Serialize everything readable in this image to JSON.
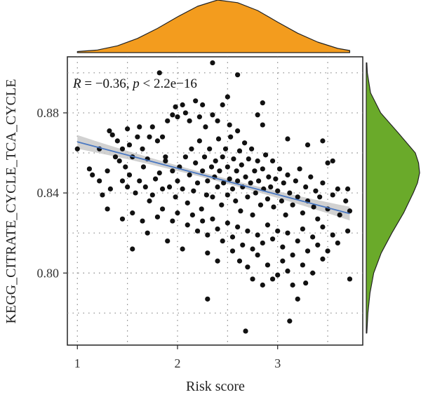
{
  "chart_data": {
    "type": "scatter",
    "title": "",
    "xlabel": "Risk score",
    "ylabel": "KEGG_CITRATE_CYCLE_TCA_CYCLE",
    "annotation": {
      "r_label": "R",
      "r_text": " = −0.36, ",
      "p_label": "p",
      "p_text": " < 2.2e−16"
    },
    "xlim": [
      0.9,
      3.85
    ],
    "ylim": [
      0.764,
      0.908
    ],
    "xticks": [
      1,
      2,
      3
    ],
    "xtick_labels": [
      "1",
      "2",
      "3"
    ],
    "yticks": [
      0.8,
      0.84,
      0.88
    ],
    "ytick_labels": [
      "0.80",
      "0.84",
      "0.88"
    ],
    "grid": true,
    "grid_style": "dotted",
    "point_color": "#111111",
    "fit_line": {
      "x": [
        1.0,
        3.72
      ],
      "y": [
        0.8655,
        0.8297
      ],
      "color": "#4a78c2",
      "band_color": "#c9c9c9"
    },
    "top_density": {
      "color": "#f39c1e",
      "x": [
        1.0,
        1.2,
        1.4,
        1.6,
        1.8,
        2.0,
        2.2,
        2.4,
        2.6,
        2.8,
        3.0,
        3.2,
        3.4,
        3.6,
        3.72
      ],
      "density": [
        0.02,
        0.05,
        0.13,
        0.27,
        0.46,
        0.68,
        0.88,
        1.0,
        0.95,
        0.8,
        0.58,
        0.37,
        0.2,
        0.08,
        0.04
      ]
    },
    "right_density": {
      "color": "#6aaa2a",
      "y": [
        0.77,
        0.78,
        0.79,
        0.8,
        0.81,
        0.82,
        0.83,
        0.84,
        0.845,
        0.85,
        0.855,
        0.86,
        0.87,
        0.88,
        0.89,
        0.9,
        0.905
      ],
      "density": [
        0.01,
        0.03,
        0.07,
        0.14,
        0.28,
        0.48,
        0.7,
        0.88,
        0.96,
        1.0,
        0.98,
        0.92,
        0.6,
        0.27,
        0.08,
        0.02,
        0.01
      ]
    },
    "series": [
      {
        "points": [
          [
            1.0,
            0.862
          ],
          [
            1.22,
            0.862
          ],
          [
            1.12,
            0.852
          ],
          [
            1.32,
            0.871
          ],
          [
            1.35,
            0.869
          ],
          [
            1.4,
            0.866
          ],
          [
            1.45,
            0.862
          ],
          [
            1.5,
            0.872
          ],
          [
            1.52,
            0.864
          ],
          [
            1.55,
            0.858
          ],
          [
            1.38,
            0.858
          ],
          [
            1.42,
            0.856
          ],
          [
            1.48,
            0.853
          ],
          [
            1.6,
            0.868
          ],
          [
            1.62,
            0.873
          ],
          [
            1.65,
            0.862
          ],
          [
            1.7,
            0.857
          ],
          [
            1.72,
            0.868
          ],
          [
            1.75,
            0.873
          ],
          [
            1.8,
            0.866
          ],
          [
            1.85,
            0.868
          ],
          [
            1.88,
            0.858
          ],
          [
            1.9,
            0.876
          ],
          [
            1.95,
            0.879
          ],
          [
            1.98,
            0.883
          ],
          [
            2.0,
            0.878
          ],
          [
            2.05,
            0.884
          ],
          [
            2.08,
            0.88
          ],
          [
            2.12,
            0.876
          ],
          [
            2.18,
            0.886
          ],
          [
            2.22,
            0.878
          ],
          [
            2.25,
            0.884
          ],
          [
            2.28,
            0.873
          ],
          [
            2.35,
            0.879
          ],
          [
            2.4,
            0.876
          ],
          [
            2.45,
            0.884
          ],
          [
            2.52,
            0.874
          ],
          [
            2.6,
            0.871
          ],
          [
            2.8,
            0.879
          ],
          [
            2.85,
            0.874
          ],
          [
            2.85,
            0.885
          ],
          [
            2.6,
            0.899
          ],
          [
            1.82,
            0.9
          ],
          [
            2.35,
            0.905
          ],
          [
            2.5,
            0.888
          ],
          [
            3.1,
            0.867
          ],
          [
            3.45,
            0.866
          ],
          [
            3.3,
            0.864
          ],
          [
            3.5,
            0.855
          ],
          [
            3.55,
            0.856
          ],
          [
            1.15,
            0.849
          ],
          [
            1.22,
            0.846
          ],
          [
            1.3,
            0.851
          ],
          [
            1.25,
            0.839
          ],
          [
            1.33,
            0.842
          ],
          [
            1.45,
            0.846
          ],
          [
            1.5,
            0.843
          ],
          [
            1.52,
            0.849
          ],
          [
            1.58,
            0.84
          ],
          [
            1.62,
            0.846
          ],
          [
            1.66,
            0.853
          ],
          [
            1.68,
            0.843
          ],
          [
            1.72,
            0.836
          ],
          [
            1.75,
            0.839
          ],
          [
            1.78,
            0.847
          ],
          [
            1.82,
            0.85
          ],
          [
            1.85,
            0.842
          ],
          [
            1.88,
            0.856
          ],
          [
            1.92,
            0.843
          ],
          [
            1.95,
            0.851
          ],
          [
            1.98,
            0.838
          ],
          [
            2.0,
            0.846
          ],
          [
            2.02,
            0.853
          ],
          [
            2.05,
            0.842
          ],
          [
            2.08,
            0.858
          ],
          [
            2.1,
            0.835
          ],
          [
            2.12,
            0.849
          ],
          [
            2.14,
            0.862
          ],
          [
            2.16,
            0.841
          ],
          [
            2.18,
            0.855
          ],
          [
            2.2,
            0.845
          ],
          [
            2.22,
            0.866
          ],
          [
            2.24,
            0.832
          ],
          [
            2.25,
            0.851
          ],
          [
            2.27,
            0.858
          ],
          [
            2.29,
            0.839
          ],
          [
            2.3,
            0.846
          ],
          [
            2.32,
            0.862
          ],
          [
            2.34,
            0.853
          ],
          [
            2.35,
            0.838
          ],
          [
            2.37,
            0.848
          ],
          [
            2.38,
            0.856
          ],
          [
            2.4,
            0.843
          ],
          [
            2.41,
            0.867
          ],
          [
            2.42,
            0.851
          ],
          [
            2.44,
            0.834
          ],
          [
            2.45,
            0.858
          ],
          [
            2.46,
            0.845
          ],
          [
            2.48,
            0.862
          ],
          [
            2.5,
            0.839
          ],
          [
            2.5,
            0.853
          ],
          [
            2.52,
            0.847
          ],
          [
            2.53,
            0.868
          ],
          [
            2.55,
            0.842
          ],
          [
            2.56,
            0.857
          ],
          [
            2.58,
            0.836
          ],
          [
            2.59,
            0.851
          ],
          [
            2.6,
            0.846
          ],
          [
            2.62,
            0.861
          ],
          [
            2.63,
            0.831
          ],
          [
            2.64,
            0.854
          ],
          [
            2.65,
            0.843
          ],
          [
            2.67,
            0.865
          ],
          [
            2.68,
            0.848
          ],
          [
            2.7,
            0.838
          ],
          [
            2.71,
            0.857
          ],
          [
            2.73,
            0.845
          ],
          [
            2.74,
            0.862
          ],
          [
            2.75,
            0.829
          ],
          [
            2.77,
            0.851
          ],
          [
            2.78,
            0.84
          ],
          [
            2.8,
            0.856
          ],
          [
            2.81,
            0.846
          ],
          [
            2.83,
            0.834
          ],
          [
            2.85,
            0.852
          ],
          [
            2.86,
            0.842
          ],
          [
            2.88,
            0.859
          ],
          [
            2.9,
            0.837
          ],
          [
            2.91,
            0.848
          ],
          [
            2.93,
            0.843
          ],
          [
            2.95,
            0.856
          ],
          [
            2.96,
            0.833
          ],
          [
            2.98,
            0.847
          ],
          [
            3.0,
            0.841
          ],
          [
            3.02,
            0.852
          ],
          [
            3.04,
            0.836
          ],
          [
            3.06,
            0.845
          ],
          [
            3.08,
            0.829
          ],
          [
            3.1,
            0.849
          ],
          [
            3.12,
            0.84
          ],
          [
            3.15,
            0.834
          ],
          [
            3.18,
            0.846
          ],
          [
            3.2,
            0.838
          ],
          [
            3.22,
            0.852
          ],
          [
            3.25,
            0.83
          ],
          [
            3.28,
            0.843
          ],
          [
            3.3,
            0.836
          ],
          [
            3.33,
            0.848
          ],
          [
            3.36,
            0.833
          ],
          [
            3.38,
            0.841
          ],
          [
            3.4,
            0.827
          ],
          [
            3.42,
            0.838
          ],
          [
            3.45,
            0.845
          ],
          [
            3.5,
            0.832
          ],
          [
            3.55,
            0.839
          ],
          [
            3.6,
            0.842
          ],
          [
            3.62,
            0.829
          ],
          [
            3.68,
            0.836
          ],
          [
            3.72,
            0.831
          ],
          [
            3.7,
            0.842
          ],
          [
            1.3,
            0.832
          ],
          [
            1.45,
            0.827
          ],
          [
            1.55,
            0.83
          ],
          [
            1.65,
            0.826
          ],
          [
            1.8,
            0.828
          ],
          [
            1.85,
            0.832
          ],
          [
            1.95,
            0.826
          ],
          [
            2.0,
            0.83
          ],
          [
            2.1,
            0.824
          ],
          [
            2.15,
            0.829
          ],
          [
            2.2,
            0.821
          ],
          [
            2.25,
            0.826
          ],
          [
            2.3,
            0.819
          ],
          [
            2.35,
            0.827
          ],
          [
            2.4,
            0.822
          ],
          [
            2.45,
            0.816
          ],
          [
            2.5,
            0.825
          ],
          [
            2.55,
            0.818
          ],
          [
            2.6,
            0.823
          ],
          [
            2.65,
            0.814
          ],
          [
            2.7,
            0.821
          ],
          [
            2.75,
            0.812
          ],
          [
            2.8,
            0.819
          ],
          [
            2.85,
            0.815
          ],
          [
            2.9,
            0.824
          ],
          [
            2.95,
            0.817
          ],
          [
            3.0,
            0.821
          ],
          [
            3.05,
            0.813
          ],
          [
            3.1,
            0.82
          ],
          [
            3.15,
            0.809
          ],
          [
            3.2,
            0.816
          ],
          [
            3.25,
            0.822
          ],
          [
            3.3,
            0.811
          ],
          [
            3.35,
            0.818
          ],
          [
            3.4,
            0.814
          ],
          [
            3.45,
            0.823
          ],
          [
            3.5,
            0.811
          ],
          [
            3.55,
            0.819
          ],
          [
            3.6,
            0.815
          ],
          [
            3.7,
            0.821
          ],
          [
            2.3,
            0.81
          ],
          [
            2.4,
            0.806
          ],
          [
            2.55,
            0.811
          ],
          [
            2.62,
            0.806
          ],
          [
            2.7,
            0.803
          ],
          [
            2.8,
            0.809
          ],
          [
            2.9,
            0.804
          ],
          [
            3.0,
            0.799
          ],
          [
            3.05,
            0.806
          ],
          [
            3.1,
            0.801
          ],
          [
            3.25,
            0.804
          ],
          [
            3.35,
            0.8
          ],
          [
            3.45,
            0.807
          ],
          [
            2.75,
            0.797
          ],
          [
            2.85,
            0.794
          ],
          [
            2.95,
            0.797
          ],
          [
            3.15,
            0.794
          ],
          [
            3.28,
            0.795
          ],
          [
            2.3,
            0.787
          ],
          [
            2.68,
            0.771
          ],
          [
            3.12,
            0.776
          ],
          [
            3.2,
            0.787
          ],
          [
            3.72,
            0.797
          ],
          [
            1.55,
            0.812
          ],
          [
            1.7,
            0.82
          ],
          [
            1.9,
            0.816
          ],
          [
            2.05,
            0.812
          ]
        ]
      }
    ]
  }
}
